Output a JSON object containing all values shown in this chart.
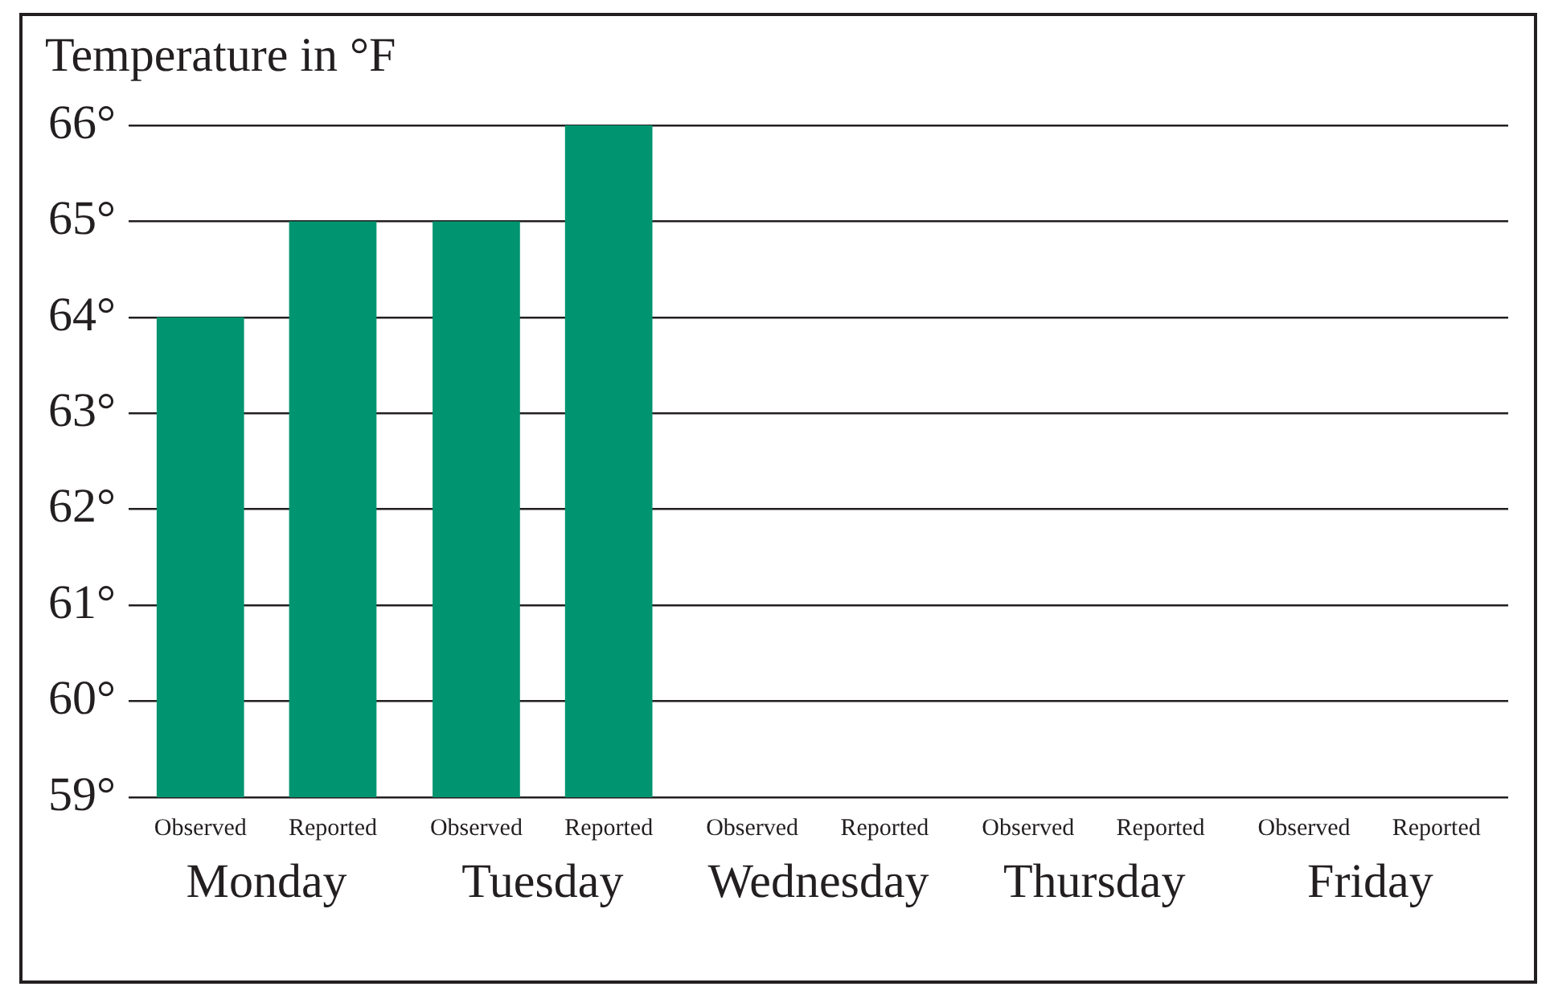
{
  "chart_data": {
    "type": "bar",
    "ylabel": "Temperature in °F",
    "categories": [
      "Monday",
      "Tuesday",
      "Wednesday",
      "Thursday",
      "Friday"
    ],
    "series": [
      {
        "name": "Observed",
        "color": "#009570",
        "values": [
          64,
          65,
          null,
          null,
          null
        ]
      },
      {
        "name": "Reported",
        "color": "#009570",
        "values": [
          65,
          66,
          null,
          null,
          null
        ]
      }
    ],
    "ylim": [
      59,
      66
    ],
    "yticks": [
      {
        "value": 59,
        "label": "59°"
      },
      {
        "value": 60,
        "label": "60°"
      },
      {
        "value": 61,
        "label": "61°"
      },
      {
        "value": 62,
        "label": "62°"
      },
      {
        "value": 63,
        "label": "63°"
      },
      {
        "value": 64,
        "label": "64°"
      },
      {
        "value": 65,
        "label": "65°"
      },
      {
        "value": 66,
        "label": "66°"
      }
    ],
    "grid": "y",
    "legend": false
  }
}
